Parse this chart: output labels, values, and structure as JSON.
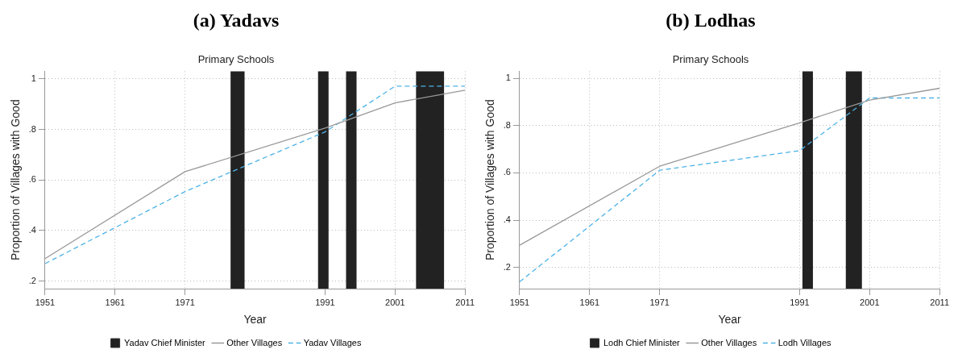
{
  "chart_data": [
    {
      "type": "line",
      "title": "(a) Yadavs",
      "subtitle": "Primary Schools",
      "xlabel": "Year",
      "ylabel": "Proportion of Villages with Good",
      "x": [
        1951,
        1971,
        1991,
        2001,
        2011
      ],
      "series": [
        {
          "name": "Other Villages",
          "color": "#999999",
          "line_style": "solid",
          "values": [
            0.289,
            0.633,
            0.805,
            0.905,
            0.955
          ]
        },
        {
          "name": "Yadav Villages",
          "color": "#4db3e6",
          "line_style": "dashed",
          "values": [
            0.269,
            0.554,
            0.79,
            0.971,
            0.971
          ]
        }
      ],
      "bands": [
        {
          "axis": "x",
          "from": 1977.5,
          "to": 1979.5,
          "label": "Yadav Chief Minister",
          "color": "#222222"
        },
        {
          "axis": "x",
          "from": 1990,
          "to": 1991.5,
          "color": "#222222"
        },
        {
          "axis": "x",
          "from": 1994,
          "to": 1995.5,
          "color": "#222222"
        },
        {
          "axis": "x",
          "from": 2004,
          "to": 2008,
          "color": "#222222"
        }
      ],
      "xlim": [
        1951,
        2011
      ],
      "xticks": [
        1951,
        1961,
        1971,
        1991,
        2001,
        2011
      ],
      "ylim": [
        0.17,
        1.03
      ],
      "yticks": [
        {
          "value": 0.2,
          "label": ".2"
        },
        {
          "value": 0.4,
          "label": ".4"
        },
        {
          "value": 0.6,
          "label": ".6"
        },
        {
          "value": 0.8,
          "label": ".8"
        },
        1
      ],
      "grid": true,
      "legend": "bottom",
      "marker": "none"
    },
    {
      "type": "line",
      "title": "(b) Lodhas",
      "subtitle": "Primary Schools",
      "xlabel": "Year",
      "ylabel": "Proportion of Villages with Good",
      "x": [
        1951,
        1971,
        1991,
        2001,
        2011
      ],
      "series": [
        {
          "name": "Other Villages",
          "color": "#999999",
          "line_style": "solid",
          "values": [
            0.294,
            0.628,
            0.812,
            0.908,
            0.958
          ]
        },
        {
          "name": "Lodh Villages",
          "color": "#4db3e6",
          "line_style": "dashed",
          "values": [
            0.139,
            0.611,
            0.694,
            0.917,
            0.917
          ]
        }
      ],
      "bands": [
        {
          "axis": "x",
          "from": 1991.4,
          "to": 1992.9,
          "label": "Lodh Chief Minister",
          "color": "#222222"
        },
        {
          "axis": "x",
          "from": 1997.6,
          "to": 1999.9,
          "color": "#222222"
        }
      ],
      "xlim": [
        1951,
        2011
      ],
      "xticks": [
        1951,
        1961,
        1971,
        1991,
        2001,
        2011
      ],
      "ylim": [
        0.11,
        1.03
      ],
      "yticks": [
        {
          "value": 0.2,
          "label": ".2"
        },
        {
          "value": 0.4,
          "label": ".4"
        },
        {
          "value": 0.6,
          "label": ".6"
        },
        {
          "value": 0.8,
          "label": ".8"
        },
        1
      ],
      "grid": true,
      "legend": "bottom",
      "marker": "none"
    }
  ]
}
